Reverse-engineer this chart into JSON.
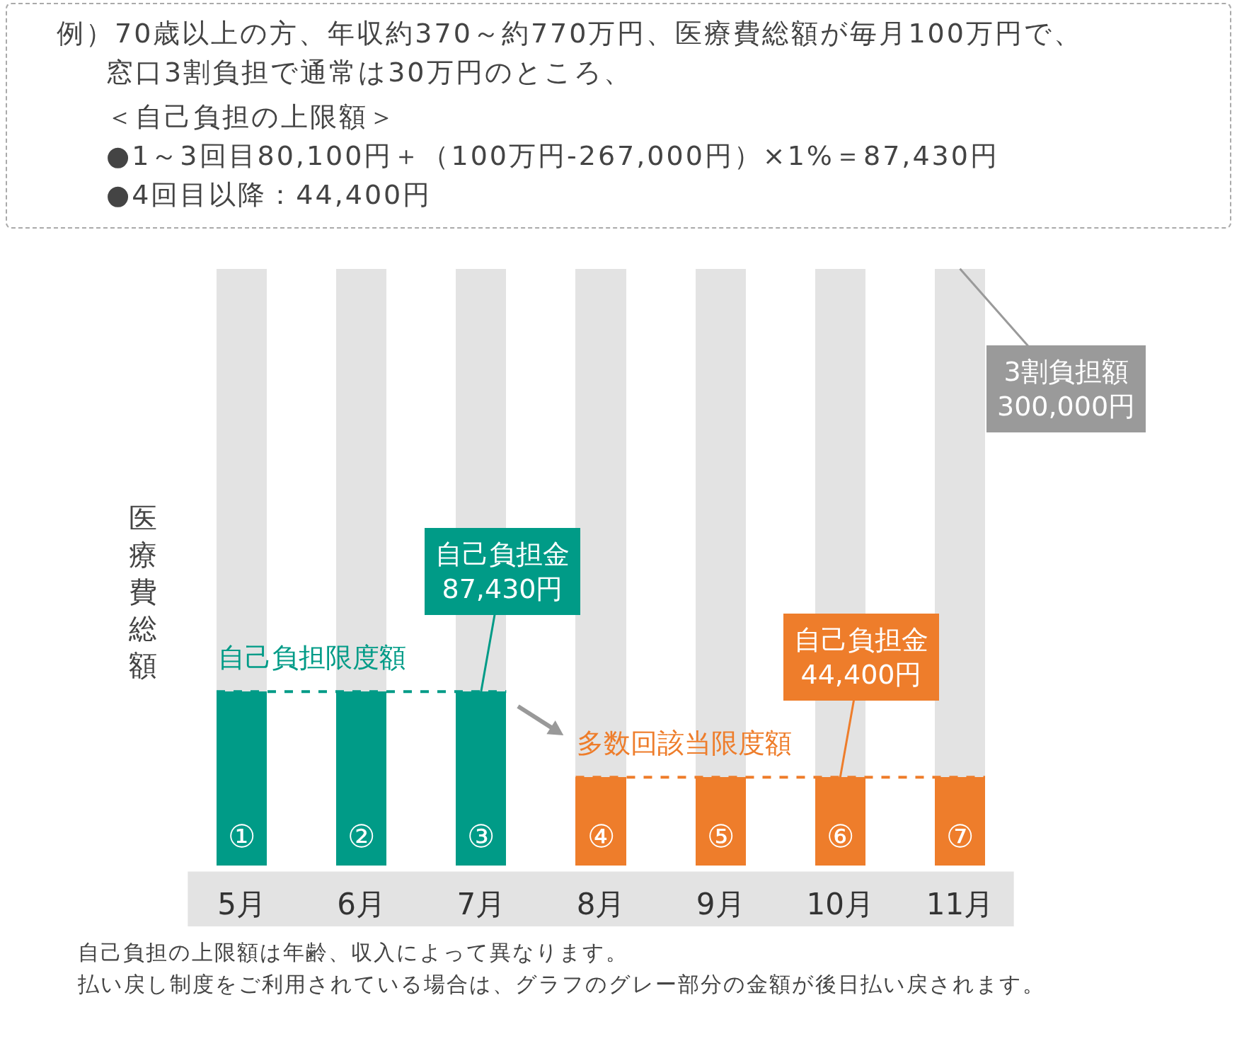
{
  "chart_data": {
    "type": "bar",
    "stacked": true,
    "title": "例）70歳以上の方、年収約370～約770万円、医療費総額が毎月100万円で、窓口3割負担で通常は30万円のところ、",
    "subtitle": "＜自己負担の上限額＞\n●1～3回目80,100円＋（100万円-267,000円）×1%＝87,430円\n●4回目以降：44,400円",
    "ylabel": "医療費総額",
    "categories": [
      "5月",
      "6月",
      "7月",
      "8月",
      "9月",
      "10月",
      "11月"
    ],
    "series": [
      {
        "colors": [
          "#009b87",
          "#009b87",
          "#009b87",
          "#ee7d2b",
          "#ee7d2b",
          "#ee7d2b",
          "#ee7d2b"
        ],
        "values": [
          87430,
          87430,
          87430,
          44400,
          44400,
          44400,
          44400
        ],
        "value_labels": [
          null,
          null,
          "自己負担金\n87,430円",
          null,
          null,
          "自己負担金\n44,400円",
          null
        ]
      },
      {
        "color": "#e3e3e3",
        "values": [
          212570,
          212570,
          212570,
          255600,
          255600,
          255600,
          255600
        ]
      }
    ],
    "totals": [
      null,
      null,
      null,
      null,
      null,
      null,
      "3割負担額\n300,000円"
    ],
    "ref_lines": [
      {
        "axis": "y",
        "value": 87430,
        "label": "自己負担限度額",
        "color": "#009b87",
        "line_style": "dashed"
      },
      {
        "axis": "y",
        "value": 44400,
        "label": "多数回該当限度額",
        "color": "#ee7d2b",
        "line_style": "dashed"
      }
    ],
    "grid": false,
    "annotations": [
      {
        "text": "①",
        "x": "5月",
        "y": 0
      },
      {
        "text": "②",
        "x": "6月",
        "y": 0
      },
      {
        "text": "③",
        "x": "7月",
        "y": 0
      },
      {
        "text": "④",
        "x": "8月",
        "y": 0
      },
      {
        "text": "⑤",
        "x": "9月",
        "y": 0
      },
      {
        "text": "⑥",
        "x": "10月",
        "y": 0
      },
      {
        "text": "⑦",
        "x": "11月",
        "y": 0
      },
      "自己負担の上限額は年齢、収入によって異なります。",
      "払い戻し制度をご利用されている場合は、グラフのグレー部分の金額が後日払い戻されます。"
    ]
  }
}
